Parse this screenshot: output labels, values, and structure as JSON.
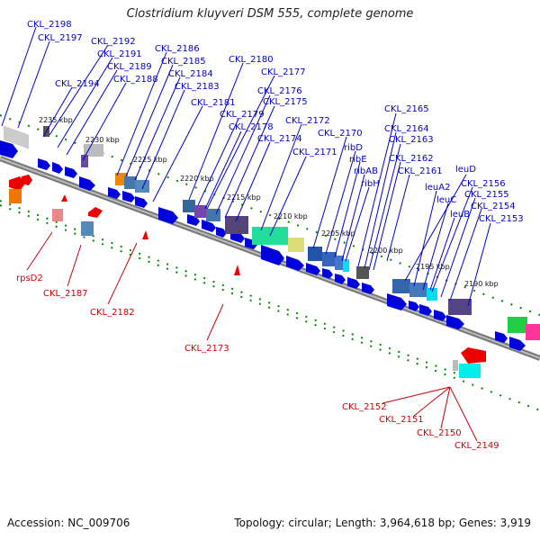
{
  "title": "Clostridium kluyveri DSM 555, complete genome",
  "accession": "Accession: NC_009706",
  "summary": "Topology: circular; Length: 3,964,618 bp; Genes: 3,919",
  "scale_ticks": [
    "2235 kbp",
    "2230 kbp",
    "2225 kbp",
    "2220 kbp",
    "2215 kbp",
    "2210 kbp",
    "2205 kbp",
    "2200 kbp",
    "2195 kbp",
    "2190 kbp"
  ],
  "top_labels": [
    "CKL_2198",
    "CKL_2197",
    "CKL_2192",
    "CKL_2191",
    "CKL_2189",
    "CKL_2188",
    "CKL_2194",
    "CKL_2186",
    "CKL_2185",
    "CKL_2184",
    "CKL_2183",
    "CKL_2181",
    "CKL_2180",
    "CKL_2177",
    "CKL_2176",
    "CKL_2175",
    "CKL_2179",
    "CKL_2178",
    "CKL_2174",
    "CKL_2172",
    "CKL_2171",
    "CKL_2170",
    "ribD",
    "ribE",
    "ribAB",
    "ribH",
    "CKL_2165",
    "CKL_2164",
    "CKL_2163",
    "CKL_2162",
    "CKL_2161",
    "leuD",
    "leuA2",
    "leuC",
    "CKL_2156",
    "CKL_2155",
    "leuB",
    "CKL_2154",
    "CKL_2153"
  ],
  "bottom_labels": [
    "rpsD2",
    "CKL_2187",
    "CKL_2182",
    "CKL_2173",
    "CKL_2152",
    "CKL_2151",
    "CKL_2150",
    "CKL_2149"
  ],
  "colors": {
    "forward": "#0000dd",
    "reverse": "#dd0000",
    "backbone": "#777777",
    "tick": "#008800"
  }
}
